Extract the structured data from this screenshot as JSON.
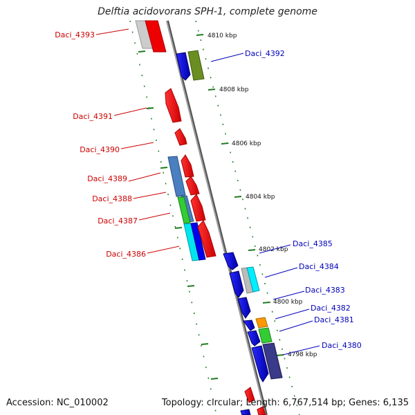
{
  "title": "Delftia acidovorans SPH-1, complete genome",
  "footer": {
    "accession": "Accession: NC_010002",
    "summary": "Topology: circular; Length: 6,767,514 bp; Genes: 6,135"
  },
  "colors": {
    "left_label": "#cc0000",
    "right_label": "#0000bb",
    "tick": "#1f7a1f",
    "backbone": "#888888"
  },
  "kbp_labels": [
    "4810 kbp",
    "4808 kbp",
    "4806 kbp",
    "4804 kbp",
    "4802 kbp",
    "4800 kbp",
    "4798 kbp"
  ],
  "gene_labels_left": [
    "Daci_4393",
    "Daci_4391",
    "Daci_4390",
    "Daci_4389",
    "Daci_4388",
    "Daci_4387",
    "Daci_4386"
  ],
  "gene_labels_right": [
    "Daci_4392",
    "Daci_4385",
    "Daci_4384",
    "Daci_4383",
    "Daci_4382",
    "Daci_4381",
    "Daci_4380"
  ]
}
